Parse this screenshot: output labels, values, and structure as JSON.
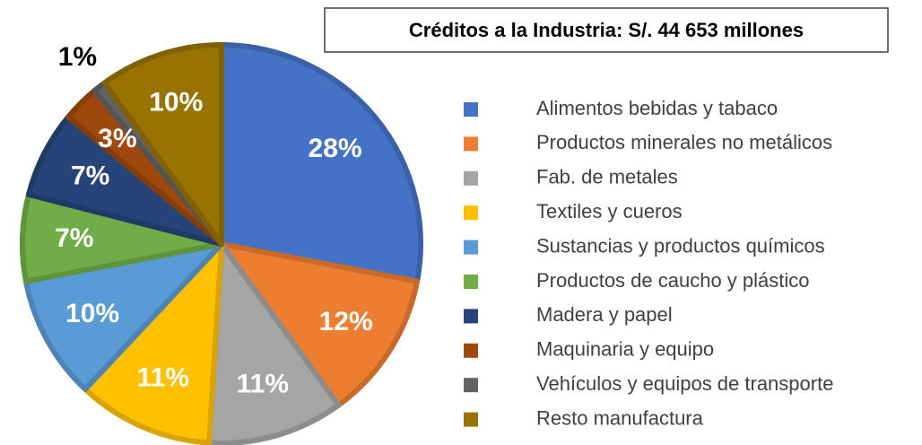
{
  "chart_data": {
    "type": "pie",
    "title": "Créditos a la Industria: S/. 44 653 millones",
    "categories": [
      "Alimentos bebidas y tabaco",
      "Productos minerales no metálicos",
      "Fab. de metales",
      "Textiles y cueros",
      "Sustancias y productos químicos",
      "Productos de caucho y plástico",
      "Madera y papel",
      "Maquinaria y equipo",
      "Vehículos y equipos de transporte",
      "Resto manufactura"
    ],
    "values": [
      28,
      12,
      11,
      11,
      10,
      7,
      7,
      3,
      1,
      10
    ],
    "value_labels": [
      "28%",
      "12%",
      "11%",
      "11%",
      "10%",
      "7%",
      "7%",
      "3%",
      "1%",
      "10%"
    ],
    "colors": [
      "#4472c4",
      "#ed7d31",
      "#a5a5a5",
      "#ffc000",
      "#5b9bd5",
      "#70ad47",
      "#264478",
      "#9e480e",
      "#636363",
      "#997300"
    ],
    "legend": "right"
  }
}
